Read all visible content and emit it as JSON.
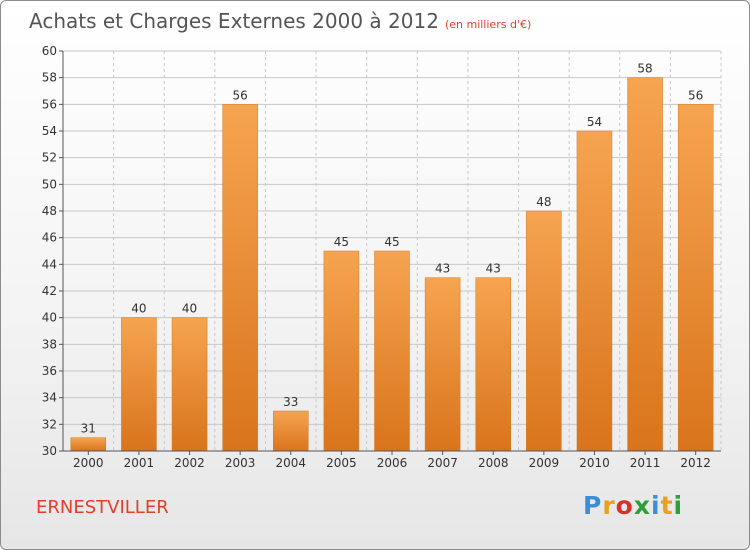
{
  "header": {
    "title": "Achats et Charges Externes 2000 à 2012",
    "subtitle": "(en milliers d'€)"
  },
  "footer": {
    "place": "ERNESTVILLER",
    "logo_letters": [
      "P",
      "r",
      "o",
      "x",
      "i",
      "t",
      "i"
    ],
    "logo_colors": [
      "#3a8fd8",
      "#e8a020",
      "#d6322a",
      "#2e9e3a",
      "#3a8fd8",
      "#e8a020",
      "#2e9e3a"
    ]
  },
  "colors": {
    "bar": "#f0912e",
    "bar_light": "#f6ad5c",
    "grid": "#c8c8c8",
    "axis": "#555555"
  },
  "chart_data": {
    "type": "bar",
    "title": "Achats et Charges Externes 2000 à 2012",
    "subtitle": "(en milliers d'€)",
    "categories": [
      "2000",
      "2001",
      "2002",
      "2003",
      "2004",
      "2005",
      "2006",
      "2007",
      "2008",
      "2009",
      "2010",
      "2011",
      "2012"
    ],
    "values": [
      31,
      40,
      40,
      56,
      33,
      45,
      45,
      43,
      43,
      48,
      54,
      58,
      56
    ],
    "ylim": [
      30,
      60
    ],
    "yticks": [
      30,
      32,
      34,
      36,
      38,
      40,
      42,
      44,
      46,
      48,
      50,
      52,
      54,
      56,
      58,
      60
    ],
    "grid": true,
    "data_labels": true
  }
}
